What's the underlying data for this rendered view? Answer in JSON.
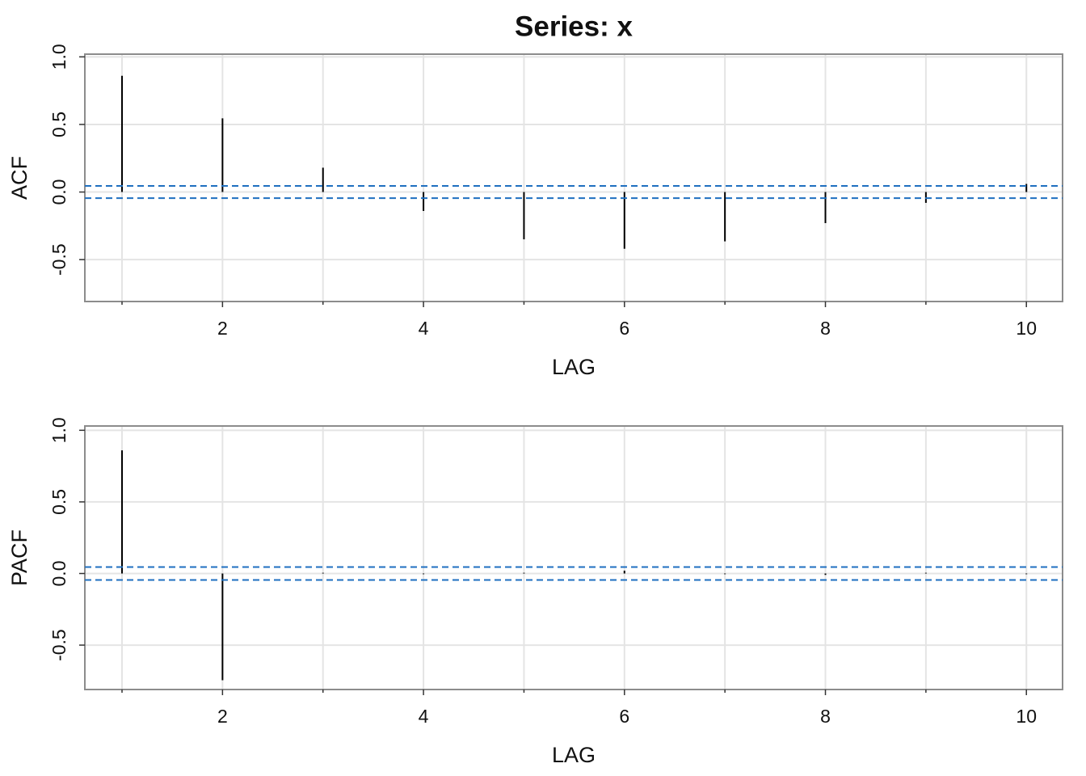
{
  "chart_data": [
    {
      "type": "acf",
      "title": "Series:  x",
      "xlabel": "LAG",
      "ylabel": "ACF",
      "x": [
        1,
        2,
        3,
        4,
        5,
        6,
        7,
        8,
        9,
        10
      ],
      "values": [
        0.86,
        0.545,
        0.18,
        -0.14,
        -0.35,
        -0.42,
        -0.365,
        -0.23,
        -0.08,
        0.06
      ],
      "ci": 0.045,
      "ci_color": "#1f6fc0",
      "color": "#000000",
      "xlim": [
        0.63,
        10.36
      ],
      "xticks": [
        2,
        4,
        6,
        8,
        10
      ],
      "xminor": [
        1,
        3,
        5,
        7,
        9
      ],
      "ylim": [
        -0.81,
        1.02
      ],
      "yticks": [
        {
          "value": 1,
          "label": "1.0"
        },
        0.5,
        {
          "value": 0,
          "label": "0.0"
        },
        -0.5
      ],
      "grid": true
    },
    {
      "type": "acf",
      "xlabel": "LAG",
      "ylabel": "PACF",
      "x": [
        1,
        2,
        3,
        4,
        5,
        6,
        7,
        8,
        9,
        10
      ],
      "values": [
        0.86,
        -0.745,
        0.005,
        -0.005,
        0.005,
        0.02,
        -0.005,
        -0.01,
        0.005,
        -0.005
      ],
      "ci": 0.045,
      "ci_color": "#1f6fc0",
      "color": "#000000",
      "xlim": [
        0.63,
        10.36
      ],
      "xticks": [
        2,
        4,
        6,
        8,
        10
      ],
      "xminor": [
        1,
        3,
        5,
        7,
        9
      ],
      "ylim": [
        -0.81,
        1.03
      ],
      "yticks": [
        {
          "value": 1,
          "label": "1.0"
        },
        0.5,
        {
          "value": 0,
          "label": "0.0"
        },
        -0.5
      ],
      "grid": true
    }
  ]
}
